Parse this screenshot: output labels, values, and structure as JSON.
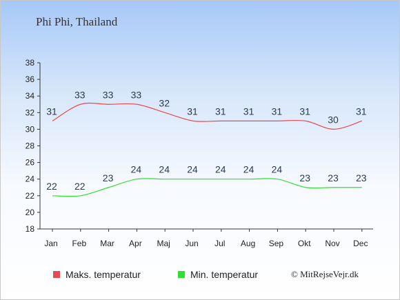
{
  "title": "Phi Phi, Thailand",
  "credit": "© MitRejseVejr.dk",
  "chart_data": {
    "type": "line",
    "categories": [
      "Jan",
      "Feb",
      "Mar",
      "Apr",
      "Maj",
      "Jun",
      "Jul",
      "Aug",
      "Sep",
      "Okt",
      "Nov",
      "Dec"
    ],
    "ylim": [
      18,
      38
    ],
    "yticks": [
      18,
      20,
      22,
      24,
      26,
      28,
      30,
      32,
      34,
      36,
      38
    ],
    "grid": false,
    "legend_position": "bottom",
    "series": [
      {
        "name": "Maks. temperatur",
        "color": "#e8484e",
        "values": [
          31,
          33,
          33,
          33,
          32,
          31,
          31,
          31,
          31,
          31,
          30,
          31
        ]
      },
      {
        "name": "Min. temperatur",
        "color": "#2fe02f",
        "values": [
          22,
          22,
          23,
          24,
          24,
          24,
          24,
          24,
          24,
          23,
          23,
          23
        ]
      }
    ]
  }
}
